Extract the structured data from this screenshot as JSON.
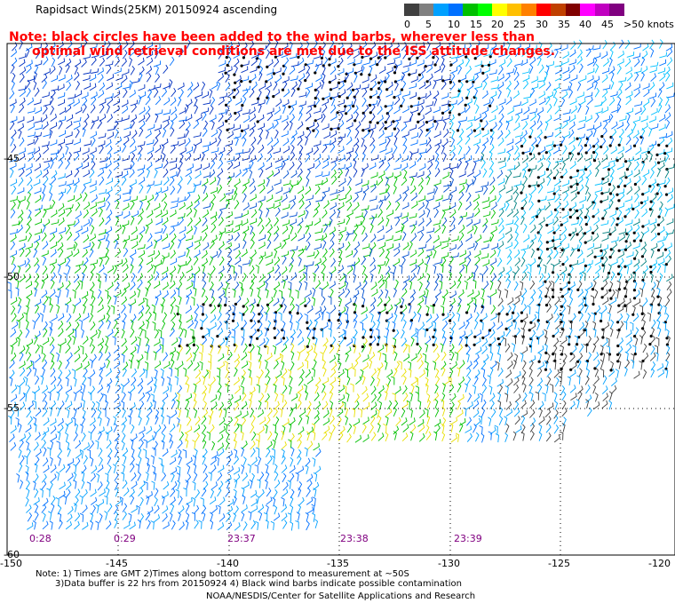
{
  "title": "Rapidsact Winds(25KM) 20150924 ascending",
  "note": {
    "line1": "Note: black circles have been added to the wind barbs, wherever less than",
    "line2": "optimal wind retrieval conditions are met due to the ISS attitude changes."
  },
  "legend": {
    "colors": [
      "#404040",
      "#808080",
      "#00a0ff",
      "#0070ff",
      "#00c000",
      "#00ff00",
      "#ffff00",
      "#ffc000",
      "#ff8000",
      "#ff0000",
      "#c04000",
      "#800000",
      "#ff00ff",
      "#c000c0",
      "#800080"
    ],
    "labels": [
      "0",
      "5",
      "10",
      "15",
      "20",
      "25",
      "30",
      "35",
      "40",
      "45",
      ">50 knots"
    ]
  },
  "latitudes": [
    "-45",
    "-50",
    "-55",
    "-60"
  ],
  "longitudes": [
    "-150",
    "-145",
    "-140",
    "-135",
    "-130",
    "-125",
    "-120"
  ],
  "times": [
    "0:28",
    "0:29",
    "23:37",
    "23:38",
    "23:39"
  ],
  "footnotes": {
    "line1": "Note: 1) Times are GMT 2)Times along bottom correspond to measurement at ~50S",
    "line2": "3)Data buffer is 22 hrs from 20150924 4) Black wind barbs indicate possible contamination"
  },
  "credit": "NOAA/NESDIS/Center for Satellite Applications and Research"
}
